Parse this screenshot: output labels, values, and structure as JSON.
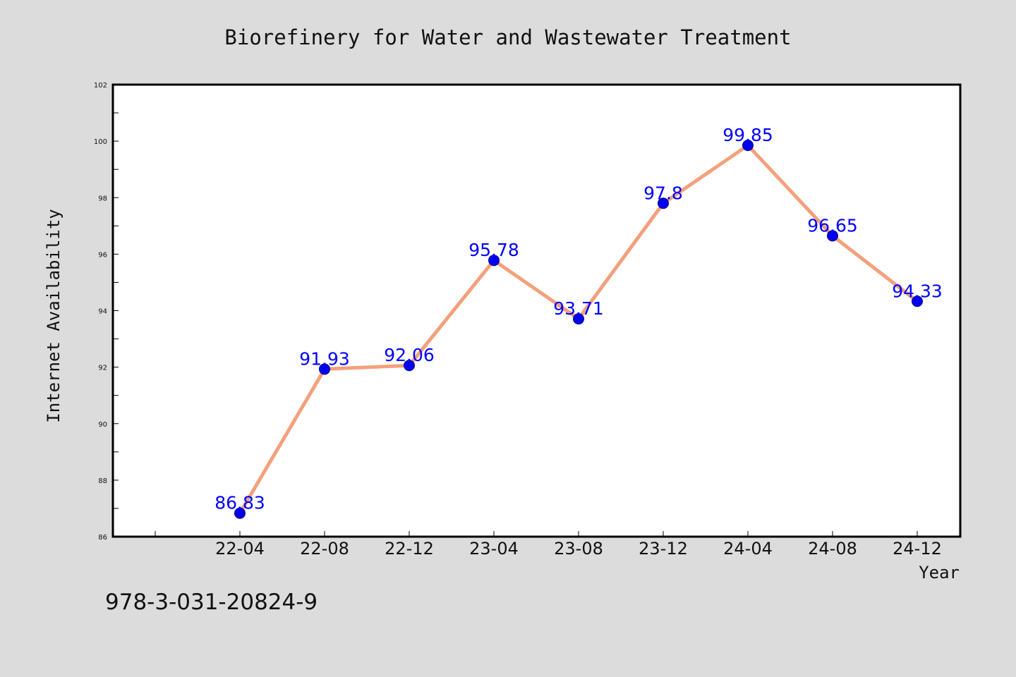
{
  "chart_data": {
    "type": "line",
    "title": "Biorefinery for Water and Wastewater Treatment",
    "xlabel": "Year",
    "ylabel": "Internet Availability",
    "categories": [
      "22-04",
      "22-08",
      "22-12",
      "23-04",
      "23-08",
      "23-12",
      "24-04",
      "24-08",
      "24-12"
    ],
    "series": [
      {
        "values": [
          86.83,
          91.93,
          92.06,
          95.78,
          93.71,
          97.8,
          99.85,
          96.65,
          94.33
        ],
        "labels": [
          "86.83",
          "91.93",
          "92.06",
          "95.78",
          "93.71",
          "97.8",
          "99.85",
          "96.65",
          "94.33"
        ],
        "line_color": "#f4a07c",
        "marker_color": "#0000ee",
        "label_color": "#0000ff"
      }
    ],
    "ylim": [
      86,
      102
    ],
    "y_ticks": [
      "86",
      "88",
      "90",
      "92",
      "94",
      "96",
      "98",
      "100",
      "102"
    ],
    "grid": false,
    "legend": "none"
  },
  "footnote": "978-3-031-20824-9",
  "colors": {
    "background": "#dcdcdc",
    "plot_background": "#ffffff",
    "frame": "#000000"
  }
}
